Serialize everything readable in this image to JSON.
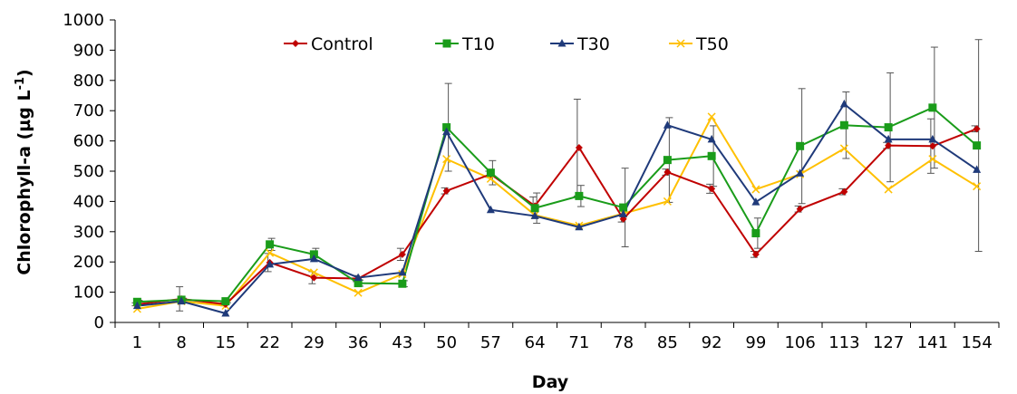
{
  "chart_data": {
    "type": "line",
    "title": "",
    "xlabel": "Day",
    "ylabel": "Chlorophyll-a (µg L",
    "ylabel_superscript": "-1",
    "ylabel_suffix": ")",
    "ylim": [
      0,
      1000
    ],
    "yticks": [
      0,
      100,
      200,
      300,
      400,
      500,
      600,
      700,
      800,
      900,
      1000
    ],
    "categories": [
      "1",
      "8",
      "15",
      "22",
      "29",
      "36",
      "43",
      "50",
      "57",
      "64",
      "71",
      "78",
      "85",
      "92",
      "99",
      "106",
      "113",
      "127",
      "141",
      "154"
    ],
    "legend_position": "top",
    "grid": false,
    "series": [
      {
        "name": "Control",
        "color": "#c00000",
        "marker": "diamond",
        "values": [
          60,
          78,
          60,
          198,
          148,
          145,
          225,
          435,
          490,
          385,
          578,
          342,
          497,
          442,
          225,
          375,
          432,
          585,
          583,
          640
        ],
        "errors": [
          5,
          40,
          5,
          30,
          20,
          10,
          20,
          10,
          10,
          30,
          160,
          10,
          10,
          15,
          10,
          10,
          10,
          10,
          90,
          10
        ]
      },
      {
        "name": "T10",
        "color": "#1a9c1a",
        "marker": "square",
        "values": [
          68,
          75,
          70,
          258,
          225,
          130,
          128,
          645,
          495,
          378,
          418,
          380,
          537,
          550,
          295,
          583,
          652,
          645,
          710,
          585
        ],
        "errors": [
          5,
          5,
          5,
          20,
          20,
          10,
          10,
          145,
          40,
          50,
          35,
          130,
          140,
          100,
          50,
          190,
          110,
          180,
          200,
          350
        ]
      },
      {
        "name": "T30",
        "color": "#1f3a7a",
        "marker": "triangle",
        "values": [
          55,
          70,
          30,
          192,
          210,
          148,
          165,
          630,
          372,
          352,
          315,
          358,
          652,
          605,
          398,
          493,
          722,
          605,
          605,
          505
        ]
      },
      {
        "name": "T50",
        "color": "#ffc000",
        "marker": "cross",
        "values": [
          45,
          70,
          55,
          230,
          165,
          98,
          160,
          540,
          475,
          355,
          320,
          360,
          400,
          680,
          440,
          490,
          575,
          440,
          540,
          450
        ]
      }
    ]
  }
}
